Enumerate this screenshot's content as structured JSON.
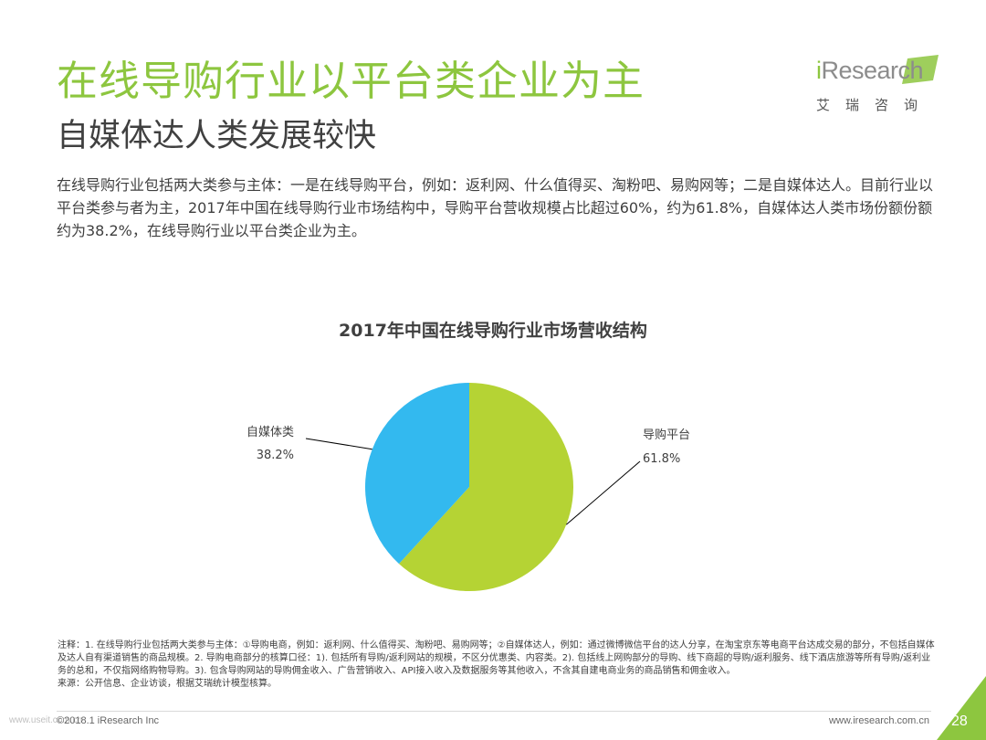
{
  "header": {
    "title": "在线导购行业以平台类企业为主",
    "subtitle": "自媒体达人类发展较快"
  },
  "logo": {
    "prefix": "i",
    "name": "Research",
    "chinese": "艾瑞咨询",
    "colors": {
      "green": "#8dc63f",
      "grey": "#8c8c8c"
    }
  },
  "intro": "在线导购行业包括两大类参与主体：一是在线导购平台，例如：返利网、什么值得买、淘粉吧、易购网等；二是自媒体达人。目前行业以平台类参与者为主，2017年中国在线导购行业市场结构中，导购平台营收规模占比超过60%，约为61.8%，自媒体达人类市场份额份额约为38.2%，在线导购行业以平台类企业为主。",
  "chart_data": {
    "type": "pie",
    "title": "2017年中国在线导购行业市场营收结构",
    "categories": [
      "导购平台",
      "自媒体类"
    ],
    "values": [
      61.8,
      38.2
    ],
    "value_labels": [
      "61.8%",
      "38.2%"
    ],
    "colors": [
      "#b5d334",
      "#33b9ef"
    ],
    "start": "12 o'clock, clockwise",
    "label_placement": "outside with leader lines"
  },
  "notes": {
    "text": "注释：1. 在线导购行业包括两大类参与主体：①导购电商，例如：返利网、什么值得买、淘粉吧、易购网等；②自媒体达人，例如：通过微博微信平台的达人分享，在淘宝京东等电商平台达成交易的部分，不包括自媒体及达人自有渠道销售的商品规模。2. 导购电商部分的核算口径：1). 包括所有导购/返利网站的规模，不区分优惠类、内容类。2). 包括线上网购部分的导购、线下商超的导购/返利服务、线下酒店旅游等所有导购/返利业务的总和，不仅指网络购物导购。3). 包含导购网站的导购佣金收入、广告营销收入、API接入收入及数据服务等其他收入，不含其自建电商业务的商品销售和佣金收入。",
    "source": "来源：公开信息、企业访谈，根据艾瑞统计模型核算。"
  },
  "footer": {
    "copyright": "©2018.1 iResearch Inc",
    "url": "www.iresearch.com.cn",
    "page": "28",
    "watermark": "www.useit.com.cn",
    "corner_color": "#8dc63f"
  }
}
